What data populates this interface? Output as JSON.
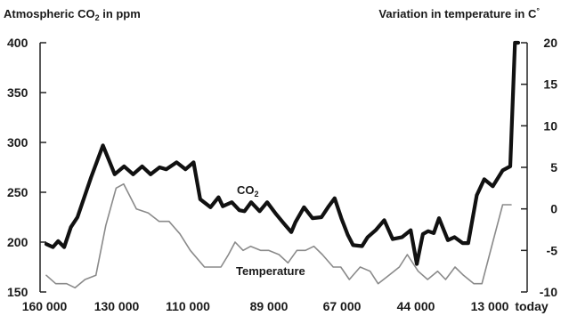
{
  "chart_data": {
    "type": "line",
    "left_axis_title": "Atmospheric CO",
    "left_axis_title_sub": "2",
    "left_axis_title_suffix": " in ppm",
    "right_axis_title": "Variation in temperature in C",
    "right_axis_title_sup": "°",
    "x_tick_labels": [
      "160 000",
      "130 000",
      "110 000",
      "89 000",
      "67 000",
      "44 000",
      "13 000",
      "today"
    ],
    "y_left_ticks": [
      150,
      200,
      250,
      300,
      350,
      400
    ],
    "y_left_lim": [
      150,
      400
    ],
    "y_right_ticks": [
      -10,
      -5,
      0,
      5,
      10,
      15,
      20
    ],
    "y_right_lim": [
      -10,
      20
    ],
    "x_lim": [
      0,
      100
    ],
    "grid": false,
    "series": [
      {
        "name": "CO",
        "name_sub": "2",
        "axis": "left",
        "color": "#111111",
        "x": [
          0,
          1.4,
          2.5,
          3.8,
          5.2,
          6.6,
          9.5,
          12,
          14.5,
          16.5,
          18.4,
          20.3,
          22.1,
          24,
          25.4,
          27.6,
          29.5,
          31.2,
          32.6,
          34.8,
          36.5,
          37.4,
          39.3,
          40.9,
          42,
          43.4,
          45.2,
          46.8,
          48.7,
          50.1,
          51.9,
          52.8,
          54.6,
          56.4,
          58.3,
          59.7,
          61.1,
          62.5,
          63.9,
          65,
          66.9,
          68.1,
          69.8,
          71.6,
          73.4,
          75.4,
          77.2,
          78.5,
          79.8,
          80.9,
          82.1,
          83.2,
          85.1,
          86.5,
          88.2,
          89.4,
          91.2,
          92.8,
          94.6,
          96.7,
          98.3,
          99.3,
          100
        ],
        "values": [
          198,
          195,
          201,
          195,
          215,
          225,
          265,
          297,
          268,
          276,
          268,
          276,
          268,
          275,
          273,
          280,
          273,
          280,
          243,
          235,
          245,
          236,
          240,
          232,
          231,
          240,
          231,
          240,
          228,
          220,
          210,
          220,
          235,
          224,
          225,
          235,
          244,
          224,
          207,
          197,
          196,
          205,
          212,
          222,
          203,
          205,
          212,
          178,
          208,
          211,
          209,
          224,
          202,
          205,
          199,
          199,
          247,
          263,
          256,
          272,
          276,
          400,
          400
        ]
      },
      {
        "name": "Temperature",
        "axis": "right",
        "color": "#8a8a8a",
        "x": [
          0,
          2,
          4.3,
          6.1,
          8.2,
          10.5,
          12.6,
          14.8,
          16.4,
          19.1,
          21.6,
          23.9,
          26,
          28.3,
          30.5,
          33.5,
          35.2,
          37,
          38.6,
          40,
          41.7,
          43.3,
          45.4,
          47.1,
          49.3,
          51.2,
          53.1,
          54.9,
          56.7,
          58.5,
          60.8,
          62.4,
          64.2,
          66.5,
          68.6,
          70.3,
          72.6,
          74.8,
          76.5,
          78.8,
          80.8,
          82.9,
          84.6,
          86.6,
          88.4,
          90.6,
          92.3,
          94.6,
          96.7,
          98.5
        ],
        "values": [
          -8,
          -9,
          -9,
          -9.5,
          -8.5,
          -8,
          -2,
          2.5,
          3,
          0,
          -0.5,
          -1.5,
          -1.5,
          -3,
          -5,
          -7,
          -7,
          -7,
          -5.5,
          -4,
          -5,
          -4.5,
          -5,
          -5,
          -5.5,
          -6.5,
          -5,
          -5,
          -4.5,
          -5.5,
          -7,
          -7,
          -8.5,
          -7,
          -7.5,
          -9,
          -8,
          -7,
          -5.5,
          -7.5,
          -8.5,
          -7.5,
          -8.5,
          -7,
          -8,
          -9,
          -9,
          -4,
          0.5,
          0.5
        ]
      }
    ]
  }
}
